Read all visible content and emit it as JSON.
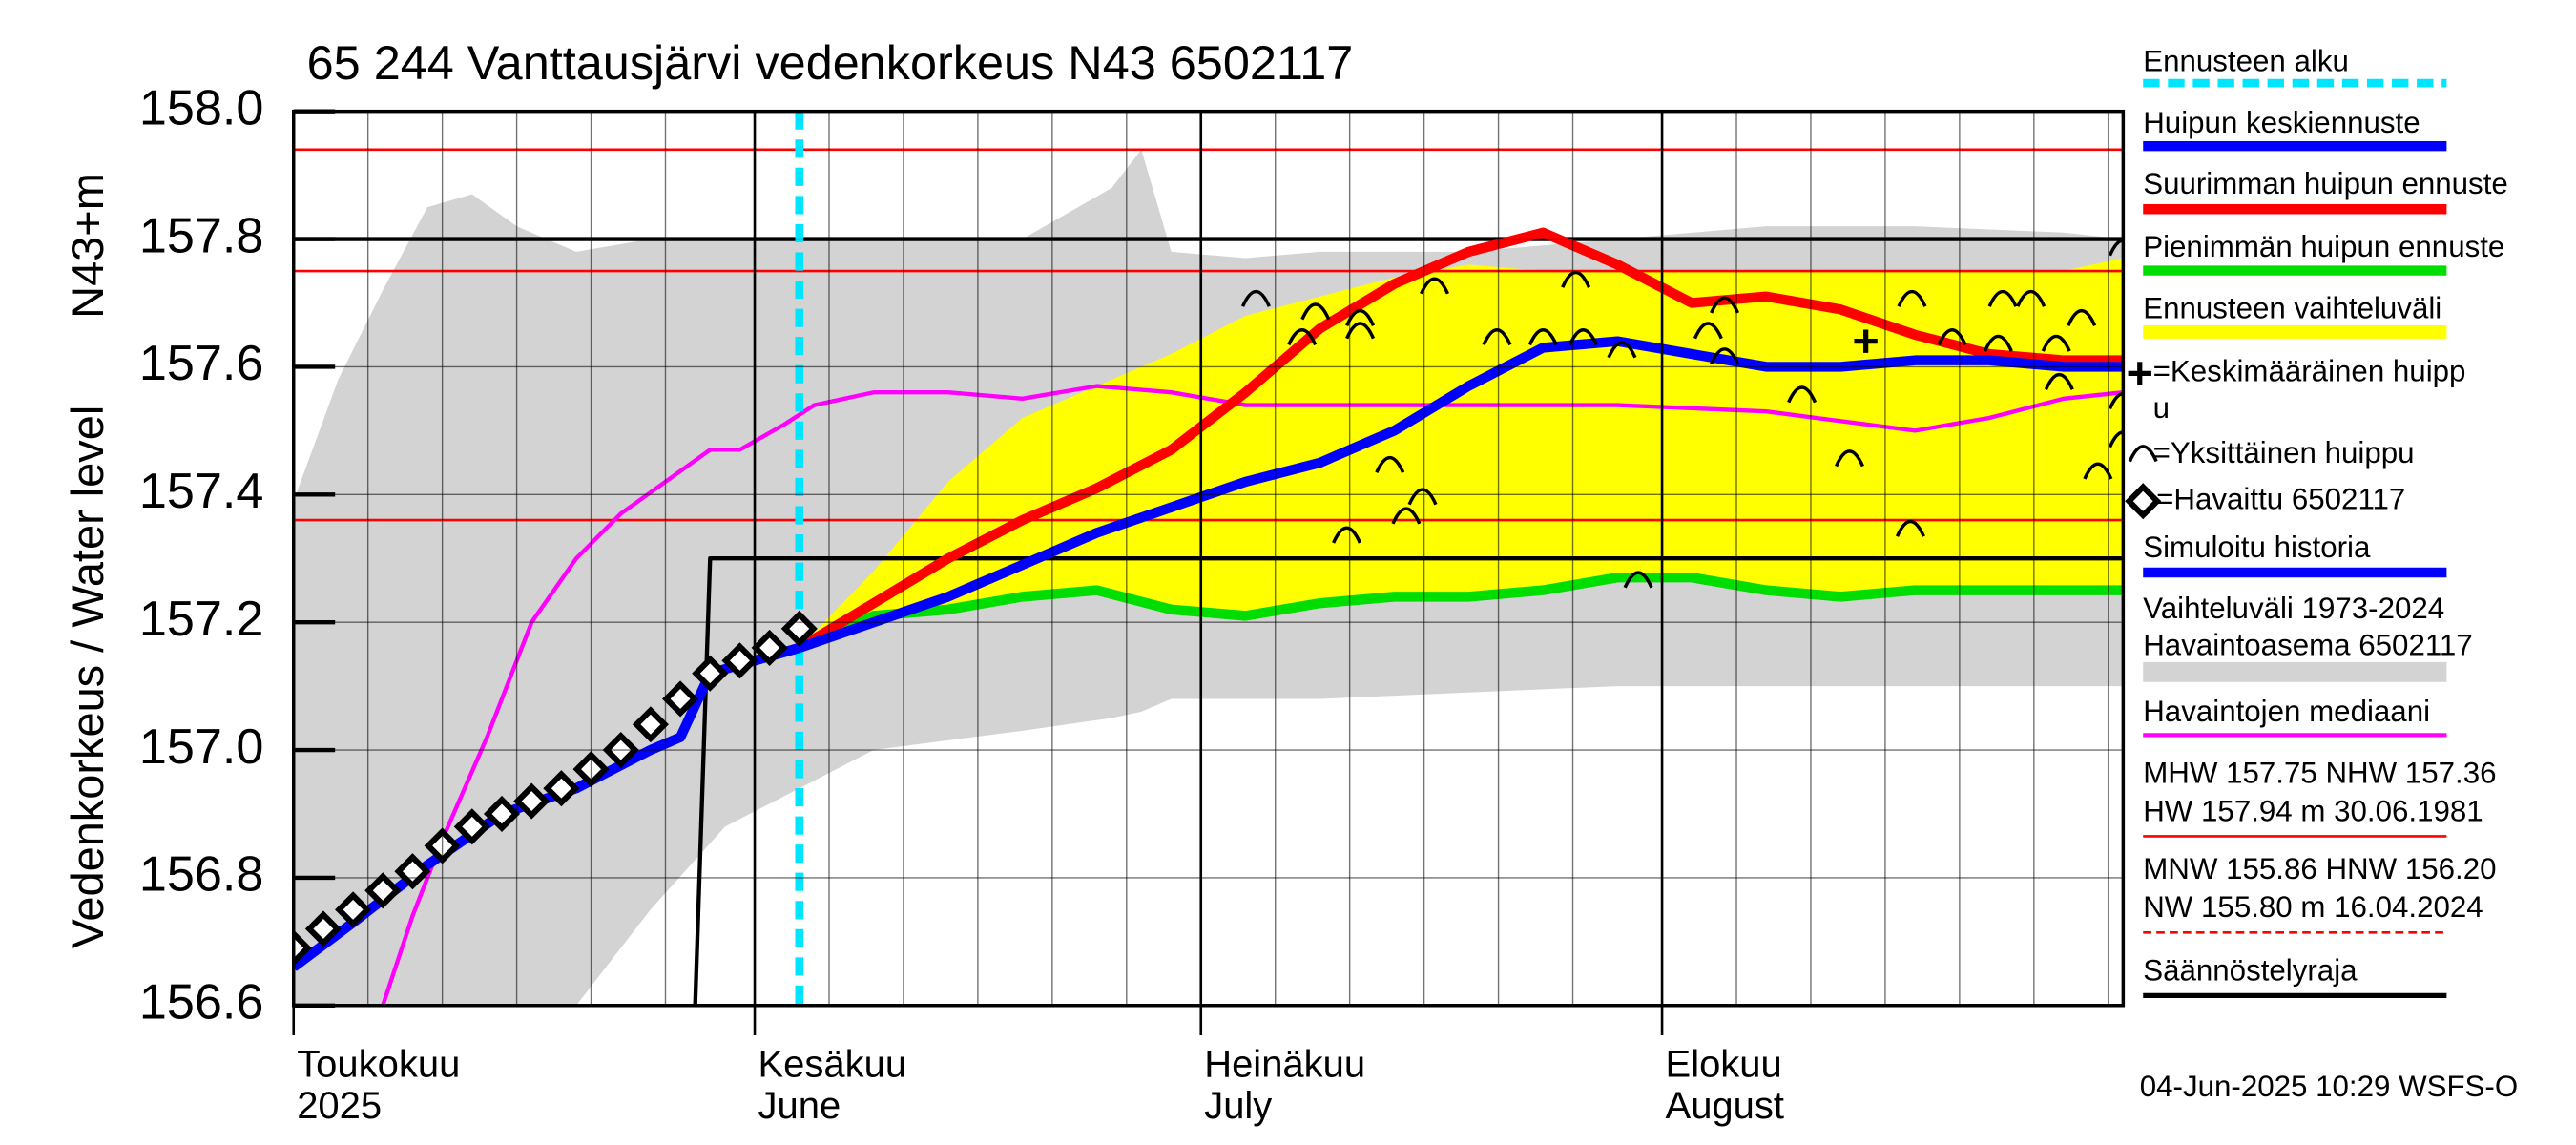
{
  "chart_data": {
    "type": "line",
    "title": "65 244 Vanttausjärvi vedenkorkeus N43 6502117",
    "y_label": "Vedenkorkeus / Water level",
    "y_unit_label": "N43+m",
    "xlim": [
      121,
      244
    ],
    "ylim": [
      156.6,
      158.0
    ],
    "yticks": [
      156.6,
      156.8,
      {
        "value": 157,
        "label": "157.0"
      },
      157.2,
      157.4,
      157.6,
      157.8,
      {
        "value": 158,
        "label": "158.0"
      }
    ],
    "xticks": [
      {
        "value": 121,
        "label": "Toukokuu",
        "label2": "2025"
      },
      {
        "value": 152,
        "label": "Kesäkuu",
        "label2": "June"
      },
      {
        "value": 182,
        "label": "Heinäkuu",
        "label2": "July"
      },
      {
        "value": 213,
        "label": "Elokuu",
        "label2": "August"
      }
    ],
    "xgrid": [
      126,
      131,
      136,
      141,
      146,
      152,
      157,
      162,
      167,
      172,
      177,
      182,
      187,
      192,
      197,
      202,
      207,
      213,
      218,
      223,
      228,
      233,
      238,
      243
    ],
    "grid": true,
    "reference_lines": {
      "color": "#ff0000",
      "values": [
        157.94,
        157.75,
        157.36
      ]
    },
    "series": [
      {
        "name": [
          "Vaihteluväli 1973-2024",
          " Havaintoasema 6502117"
        ],
        "color": "#d3d3d3",
        "style": "band",
        "x": [
          121,
          124,
          127,
          130,
          133,
          136,
          140,
          145,
          150,
          155,
          160,
          170,
          176,
          178,
          180,
          185,
          190,
          200,
          210,
          220,
          230,
          240,
          244
        ],
        "values": [
          157.39,
          157.58,
          157.72,
          157.85,
          157.87,
          157.82,
          157.78,
          157.8,
          157.8,
          157.8,
          157.8,
          157.8,
          157.88,
          157.94,
          157.78,
          157.77,
          157.78,
          157.78,
          157.8,
          157.82,
          157.82,
          157.81,
          157.8
        ],
        "lower": [
          156.6,
          156.6,
          156.6,
          156.6,
          156.6,
          156.6,
          156.6,
          156.75,
          156.88,
          156.94,
          157.0,
          157.03,
          157.05,
          157.06,
          157.08,
          157.08,
          157.08,
          157.09,
          157.1,
          157.1,
          157.1,
          157.1,
          157.1
        ]
      },
      {
        "name": "Ennusteen vaihteluväli",
        "color": "#ffff00",
        "style": "band",
        "x": [
          155,
          160,
          165,
          170,
          175,
          180,
          185,
          190,
          195,
          200,
          205,
          210,
          215,
          220,
          225,
          230,
          235,
          240,
          244
        ],
        "values": [
          157.16,
          157.28,
          157.42,
          157.52,
          157.57,
          157.62,
          157.68,
          157.71,
          157.74,
          157.76,
          157.75,
          157.75,
          157.75,
          157.75,
          157.75,
          157.75,
          157.75,
          157.75,
          157.77
        ],
        "lower": [
          157.16,
          157.21,
          157.22,
          157.24,
          157.25,
          157.22,
          157.21,
          157.23,
          157.24,
          157.24,
          157.25,
          157.27,
          157.27,
          157.25,
          157.24,
          157.25,
          157.25,
          157.25,
          157.25
        ]
      },
      {
        "name": "Havaintojen mediaani",
        "color": "#ff00ff",
        "style": "line",
        "width": 2.5,
        "x": [
          127,
          129,
          131,
          134,
          137,
          140,
          143,
          146,
          149,
          151,
          154,
          156,
          160,
          165,
          170,
          175,
          180,
          185,
          190,
          200,
          210,
          220,
          230,
          235,
          240,
          244
        ],
        "values": [
          156.6,
          156.74,
          156.86,
          157.02,
          157.2,
          157.3,
          157.37,
          157.42,
          157.47,
          157.47,
          157.51,
          157.54,
          157.56,
          157.56,
          157.55,
          157.57,
          157.56,
          157.54,
          157.54,
          157.54,
          157.54,
          157.53,
          157.5,
          157.52,
          157.55,
          157.56
        ]
      },
      {
        "name": "Säännöstelyraja",
        "color": "#000000",
        "style": "line",
        "width": 2.5,
        "x": [
          148,
          149,
          244,
          244,
          121,
          244
        ],
        "values": [
          156.6,
          157.3,
          157.3,
          null,
          157.8,
          157.8
        ]
      },
      {
        "name": "Ennusteen alku",
        "color": "#00e5ff",
        "style": "vline",
        "x": [
          155
        ]
      },
      {
        "name": "Pienimmän huipun ennuste",
        "color": "#00dd00",
        "style": "line",
        "width": 6,
        "x": [
          155,
          160,
          165,
          170,
          175,
          180,
          185,
          190,
          195,
          200,
          205,
          210,
          215,
          220,
          225,
          230,
          235,
          240,
          244
        ],
        "values": [
          157.16,
          157.21,
          157.22,
          157.24,
          157.25,
          157.22,
          157.21,
          157.23,
          157.24,
          157.24,
          157.25,
          157.27,
          157.27,
          157.25,
          157.24,
          157.25,
          157.25,
          157.25,
          157.25
        ]
      },
      {
        "name": "Suurimman huipun ennuste",
        "color": "#ff0000",
        "style": "line",
        "width": 6,
        "x": [
          155,
          160,
          165,
          170,
          175,
          180,
          185,
          190,
          195,
          200,
          205,
          210,
          215,
          220,
          225,
          230,
          235,
          240,
          244
        ],
        "values": [
          157.16,
          157.23,
          157.3,
          157.36,
          157.41,
          157.47,
          157.56,
          157.66,
          157.73,
          157.78,
          157.81,
          157.76,
          157.7,
          157.71,
          157.69,
          157.65,
          157.62,
          157.61,
          157.61
        ]
      },
      {
        "name": "Huipun keskiennuste",
        "color": "#0000ff",
        "style": "line",
        "width": 6,
        "x": [
          155,
          160,
          165,
          170,
          175,
          180,
          185,
          190,
          195,
          200,
          205,
          210,
          215,
          220,
          225,
          230,
          235,
          240,
          244
        ],
        "values": [
          157.16,
          157.2,
          157.24,
          157.29,
          157.34,
          157.38,
          157.42,
          157.45,
          157.5,
          157.57,
          157.63,
          157.64,
          157.62,
          157.6,
          157.6,
          157.61,
          157.61,
          157.6,
          157.6
        ]
      },
      {
        "name": "Simuloitu historia",
        "color": "#0000ff",
        "style": "line",
        "width": 6,
        "x": [
          121,
          125,
          130,
          135,
          140,
          145,
          147,
          149,
          152,
          155
        ],
        "values": [
          156.66,
          156.73,
          156.82,
          156.9,
          156.94,
          157.0,
          157.02,
          157.12,
          157.14,
          157.16
        ]
      },
      {
        "name": "=Havaittu 6502117",
        "color": "#000000",
        "style": "diamond",
        "x": [
          121,
          123,
          125,
          127,
          129,
          131,
          133,
          135,
          137,
          139,
          141,
          143,
          145,
          147,
          149,
          151,
          153,
          155
        ],
        "values": [
          156.69,
          156.72,
          156.75,
          156.78,
          156.81,
          156.85,
          156.88,
          156.9,
          156.92,
          156.94,
          156.97,
          157.0,
          157.04,
          157.08,
          157.12,
          157.14,
          157.16,
          157.19
        ]
      },
      {
        "name": "=Yksittäinen huippu",
        "color": "#000000",
        "style": "arc",
        "x": [
          185.7,
          189.7,
          188.8,
          192.7,
          192.7,
          197.7,
          191.8,
          195.8,
          196.9,
          194.7,
          201.9,
          205,
          207.2,
          207.7,
          210.3,
          211.4,
          216.1,
          217.2,
          217.2,
          222.4,
          225.6,
          229.7,
          229.8,
          232.5,
          235.9,
          237.8,
          235.6,
          239.5,
          239.7,
          241.2,
          242.3,
          244,
          244,
          244
        ],
        "values": [
          157.71,
          157.69,
          157.65,
          157.68,
          157.66,
          157.73,
          157.34,
          157.37,
          157.4,
          157.45,
          157.65,
          157.65,
          157.74,
          157.65,
          157.63,
          157.27,
          157.66,
          157.7,
          157.62,
          157.56,
          157.46,
          157.35,
          157.71,
          157.65,
          157.71,
          157.71,
          157.64,
          157.64,
          157.58,
          157.68,
          157.44,
          157.79,
          157.49,
          157.55
        ]
      },
      {
        "name": [
          "=Keskimääräinen huipp",
          "u"
        ],
        "color": "#000000",
        "style": "plus",
        "x": [
          226.7
        ],
        "values": [
          157.64
        ]
      }
    ],
    "stats": [
      {
        "lines": [
          "MHW 157.75 NHW 157.36",
          "HW 157.94 m 30.06.1981"
        ],
        "color": "#ff0000",
        "style": "solid"
      },
      {
        "lines": [
          "MNW 155.86 HNW 156.20",
          "NW 155.80 m 16.04.2024"
        ],
        "color": "#ff0000",
        "style": "dashed"
      }
    ],
    "footer": "04-Jun-2025 10:29 WSFS-O"
  }
}
